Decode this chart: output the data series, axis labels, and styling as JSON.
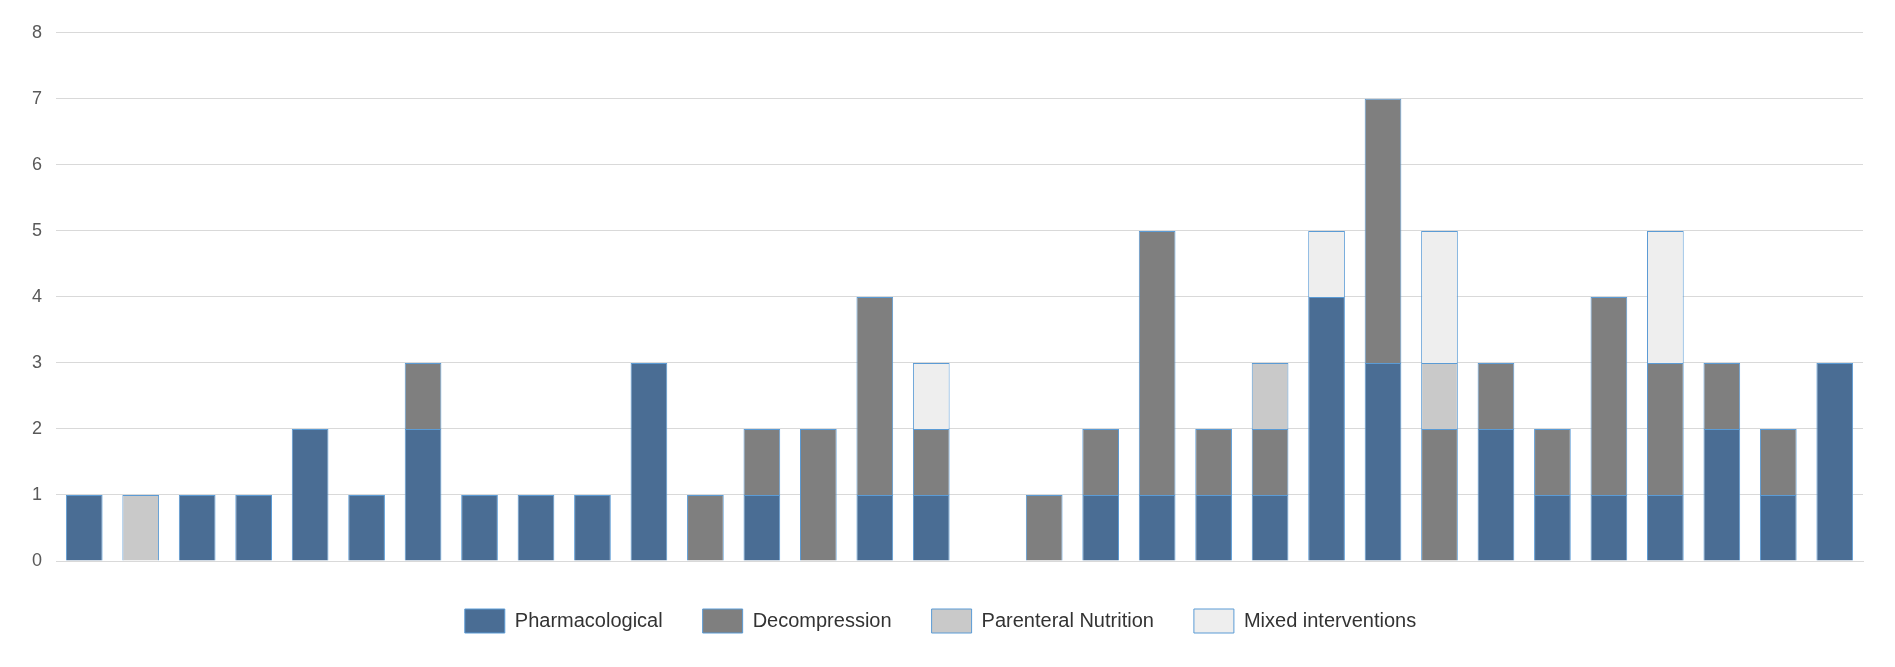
{
  "chart_data": {
    "type": "bar",
    "stacked": true,
    "categories": [
      null,
      null,
      null,
      null,
      null,
      null,
      null,
      null,
      null,
      null,
      null,
      null,
      null,
      null,
      null,
      null,
      null,
      null,
      null,
      null,
      null,
      null,
      null,
      null,
      null,
      null,
      null,
      null,
      null,
      null,
      null,
      null
    ],
    "series": [
      {
        "name": "Pharmacological",
        "color": "#4a6d94",
        "values": [
          1,
          0,
          1,
          1,
          2,
          1,
          2,
          1,
          1,
          1,
          3,
          0,
          1,
          0,
          1,
          1,
          0,
          0,
          1,
          1,
          1,
          1,
          4,
          3,
          0,
          2,
          1,
          1,
          1,
          2,
          1,
          3
        ]
      },
      {
        "name": "Decompression",
        "color": "#7f7f7f",
        "values": [
          0,
          0,
          0,
          0,
          0,
          0,
          1,
          0,
          0,
          0,
          0,
          1,
          1,
          2,
          3,
          1,
          0,
          1,
          1,
          4,
          1,
          1,
          0,
          4,
          2,
          1,
          1,
          3,
          2,
          1,
          1,
          0
        ]
      },
      {
        "name": "Parenteral Nutrition",
        "color": "#c9c9c9",
        "values": [
          0,
          1,
          0,
          0,
          0,
          0,
          0,
          0,
          0,
          0,
          0,
          0,
          0,
          0,
          0,
          0,
          0,
          0,
          0,
          0,
          0,
          1,
          0,
          0,
          1,
          0,
          0,
          0,
          0,
          0,
          0,
          0
        ]
      },
      {
        "name": "Mixed interventions",
        "color": "#eeeeee",
        "values": [
          0,
          0,
          0,
          0,
          0,
          0,
          0,
          0,
          0,
          0,
          0,
          0,
          0,
          0,
          0,
          1,
          0,
          0,
          0,
          0,
          0,
          0,
          1,
          0,
          2,
          0,
          0,
          0,
          2,
          0,
          0,
          0
        ]
      }
    ],
    "ylim": [
      0,
      8
    ],
    "yticks": [
      0,
      1,
      2,
      3,
      4,
      5,
      6,
      7,
      8
    ],
    "grid": "y",
    "legend": "bottom"
  }
}
